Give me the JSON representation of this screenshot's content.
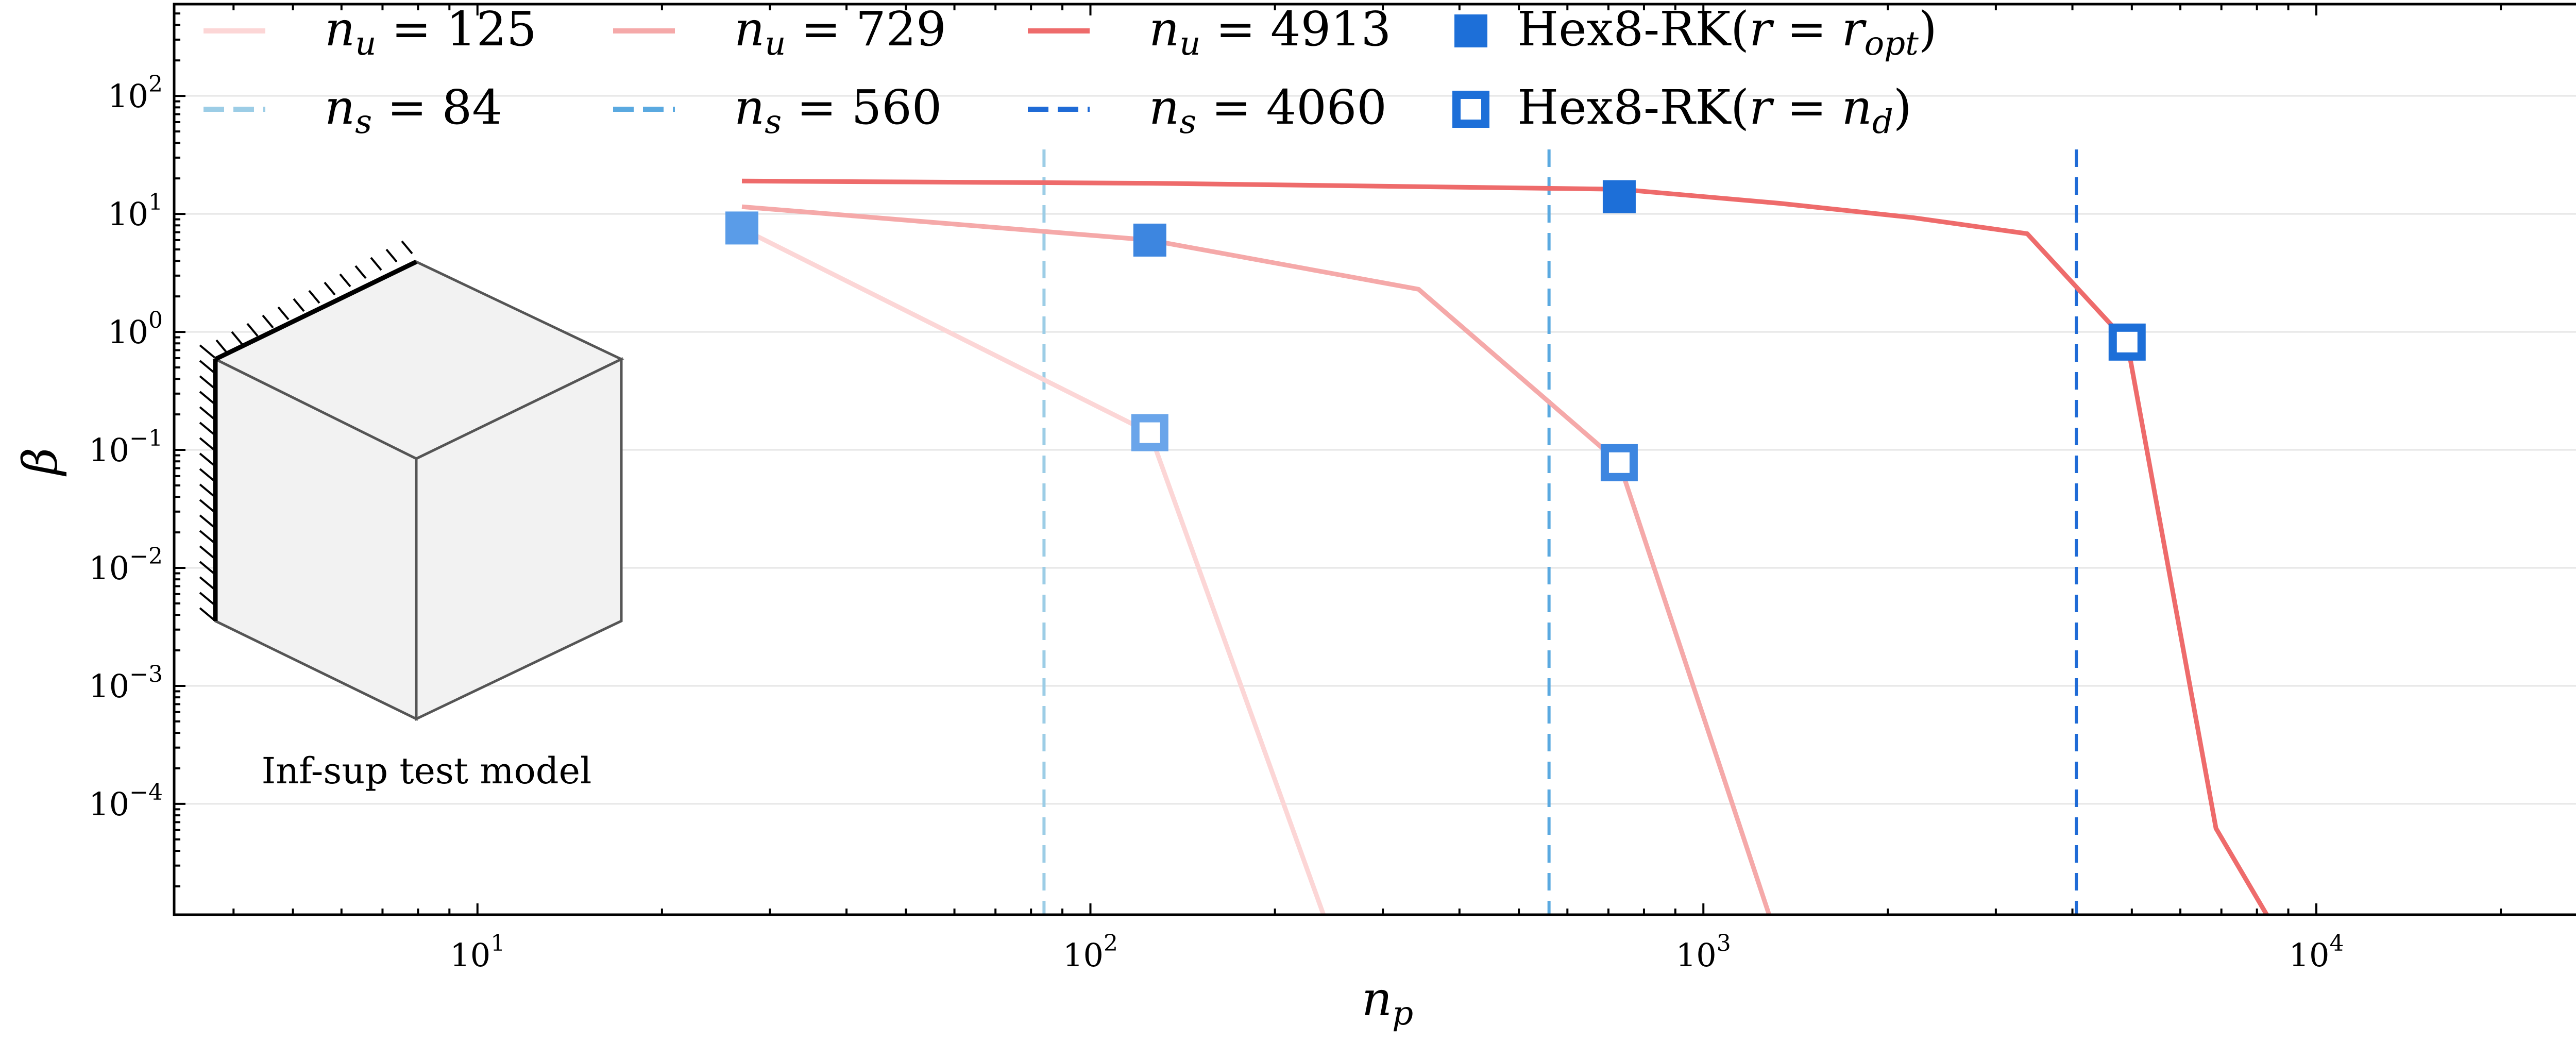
{
  "chart_data": {
    "type": "line",
    "title": "",
    "xlabel": "n_p",
    "ylabel": "β",
    "xscale": "log",
    "yscale": "log",
    "xlim": [
      3.2,
      28000
    ],
    "ylim": [
      1.15e-05,
      600
    ],
    "xticks": [
      {
        "value": 10,
        "base": "10",
        "exp": "1"
      },
      {
        "value": 100,
        "base": "10",
        "exp": "2"
      },
      {
        "value": 1000,
        "base": "10",
        "exp": "3"
      },
      {
        "value": 10000,
        "base": "10",
        "exp": "4"
      }
    ],
    "yticks": [
      {
        "value": 0.0001,
        "base": "10",
        "exp": "−4"
      },
      {
        "value": 0.001,
        "base": "10",
        "exp": "−3"
      },
      {
        "value": 0.01,
        "base": "10",
        "exp": "−2"
      },
      {
        "value": 0.1,
        "base": "10",
        "exp": "−1"
      },
      {
        "value": 1,
        "base": "10",
        "exp": "0"
      },
      {
        "value": 10,
        "base": "10",
        "exp": "1"
      },
      {
        "value": 100,
        "base": "10",
        "exp": "2"
      }
    ],
    "grid": "horizontal",
    "legend_position": "top-left",
    "series": [
      {
        "name": "n_u = 125",
        "legend_var": "n",
        "legend_sub": "u",
        "legend_value": "= 125",
        "style": "solid",
        "color": "#fcd6d6",
        "x": [
          27,
          125,
          240
        ],
        "y": [
          7.5,
          0.14,
          1.15e-05
        ]
      },
      {
        "name": "n_u = 729",
        "legend_var": "n",
        "legend_sub": "u",
        "legend_value": "= 729",
        "style": "solid",
        "color": "#f5a9a9",
        "x": [
          27,
          125,
          343,
          729,
          1280
        ],
        "y": [
          11.5,
          6.0,
          2.3,
          0.078,
          1.15e-05
        ]
      },
      {
        "name": "n_u = 4913",
        "legend_var": "n",
        "legend_sub": "u",
        "legend_value": "= 4913",
        "style": "solid",
        "color": "#ee6b6b",
        "x": [
          27,
          125,
          729,
          1331,
          2197,
          3375,
          4913,
          6859,
          8300
        ],
        "y": [
          19,
          18.2,
          16.2,
          12.3,
          9.3,
          6.8,
          0.82,
          6.2e-05,
          1.15e-05
        ]
      }
    ],
    "vlines": [
      {
        "name": "n_s = 84",
        "legend_var": "n",
        "legend_sub": "s",
        "legend_value": "= 84",
        "x": 84,
        "color": "#9ccde6"
      },
      {
        "name": "n_s = 560",
        "legend_var": "n",
        "legend_sub": "s",
        "legend_value": "= 560",
        "x": 560,
        "color": "#5aa9e0"
      },
      {
        "name": "n_s = 4060",
        "legend_var": "n",
        "legend_sub": "s",
        "legend_value": "= 4060",
        "x": 4060,
        "color": "#1f6bd6"
      }
    ],
    "markers": [
      {
        "name": "Hex8-RK(r = r_opt)",
        "legend_text": "Hex8-RK(",
        "legend_var": "r",
        "legend_mid": " = ",
        "legend_var2": "r",
        "legend_sub": "opt",
        "legend_close": ")",
        "filled": true,
        "color": "#1d6fd8",
        "points": [
          {
            "x": 27,
            "y": 7.6,
            "color": "#5a9ce8"
          },
          {
            "x": 125,
            "y": 6.0,
            "color": "#3d86e0"
          },
          {
            "x": 729,
            "y": 14,
            "color": "#1d6fd8"
          }
        ]
      },
      {
        "name": "Hex8-RK(r = n_d)",
        "legend_text": "Hex8-RK(",
        "legend_var": "r",
        "legend_mid": " = ",
        "legend_var2": "n",
        "legend_sub": "d",
        "legend_close": ")",
        "filled": false,
        "color": "#1d6fd8",
        "points": [
          {
            "x": 125,
            "y": 0.14,
            "color": "#6aa5ea"
          },
          {
            "x": 729,
            "y": 0.078,
            "color": "#3d86e0"
          },
          {
            "x": 4913,
            "y": 0.82,
            "color": "#1d6fd8"
          }
        ]
      }
    ],
    "inset_label": "Inf-sup test model"
  }
}
